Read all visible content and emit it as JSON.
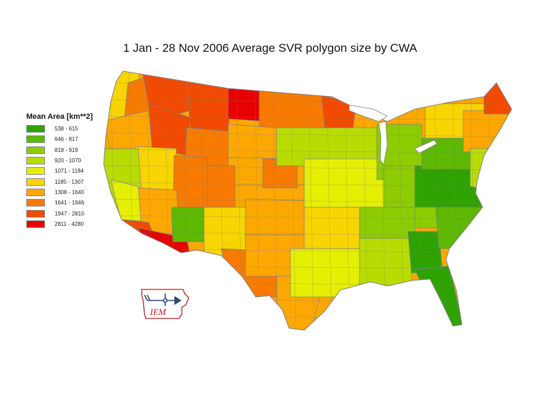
{
  "title": "1 Jan - 28 Nov 2006 Average SVR polygon size by CWA",
  "legend": {
    "title": "Mean Area [km**2]",
    "classes": [
      {
        "label": "538 - 615",
        "color": "#2ea300"
      },
      {
        "label": "646 - 817",
        "color": "#5cb800"
      },
      {
        "label": "818 - 919",
        "color": "#8ccc00"
      },
      {
        "label": "920 - 1070",
        "color": "#b9dc00"
      },
      {
        "label": "1071 - 1184",
        "color": "#e5ef00"
      },
      {
        "label": "1185 - 1307",
        "color": "#f8d400"
      },
      {
        "label": "1308 - 1640",
        "color": "#fca800"
      },
      {
        "label": "1641 - 1946",
        "color": "#f87a00"
      },
      {
        "label": "1947 - 2810",
        "color": "#f24a00"
      },
      {
        "label": "2811 - 4280",
        "color": "#e80000"
      }
    ]
  },
  "map": {
    "border_color": "#808080",
    "regions": [
      {
        "name": "pacific-nw",
        "class": 5
      },
      {
        "name": "washington-east",
        "class": 7
      },
      {
        "name": "montana-west",
        "class": 8
      },
      {
        "name": "montana-north",
        "class": 8
      },
      {
        "name": "montana-northeast",
        "class": 9
      },
      {
        "name": "north-dakota",
        "class": 7
      },
      {
        "name": "minnesota-north",
        "class": 8
      },
      {
        "name": "oregon",
        "class": 6
      },
      {
        "name": "idaho",
        "class": 8
      },
      {
        "name": "wyoming",
        "class": 7
      },
      {
        "name": "south-dakota",
        "class": 6
      },
      {
        "name": "nebraska-iowa",
        "class": 6
      },
      {
        "name": "kansas",
        "class": 7
      },
      {
        "name": "colorado",
        "class": 7
      },
      {
        "name": "nevada",
        "class": 5
      },
      {
        "name": "utah",
        "class": 7
      },
      {
        "name": "california-north",
        "class": 3
      },
      {
        "name": "california-coast",
        "class": 4
      },
      {
        "name": "arizona",
        "class": 6
      },
      {
        "name": "socal",
        "class": 8
      },
      {
        "name": "socal-desert",
        "class": 9
      },
      {
        "name": "new-mexico-west",
        "class": 1
      },
      {
        "name": "new-mexico-east",
        "class": 5
      },
      {
        "name": "oklahoma",
        "class": 6
      },
      {
        "name": "texas-west",
        "class": 7
      },
      {
        "name": "texas-central",
        "class": 6
      },
      {
        "name": "texas-south",
        "class": 6
      },
      {
        "name": "arkansas",
        "class": 5
      },
      {
        "name": "louisiana",
        "class": 4
      },
      {
        "name": "wisconsin",
        "class": 3
      },
      {
        "name": "illinois",
        "class": 4
      },
      {
        "name": "michigan",
        "class": 2
      },
      {
        "name": "ohio-valley",
        "class": 2
      },
      {
        "name": "kentucky-tennessee",
        "class": 2
      },
      {
        "name": "mississippi-alabama",
        "class": 3
      },
      {
        "name": "georgia",
        "class": 0
      },
      {
        "name": "florida",
        "class": 0
      },
      {
        "name": "carolinas",
        "class": 1
      },
      {
        "name": "virginia",
        "class": 0
      },
      {
        "name": "pennsylvania",
        "class": 1
      },
      {
        "name": "new-york",
        "class": 5
      },
      {
        "name": "new-england",
        "class": 6
      },
      {
        "name": "maine",
        "class": 8
      },
      {
        "name": "mid-atlantic",
        "class": 3
      }
    ]
  },
  "logo": {
    "text": "IEM"
  }
}
